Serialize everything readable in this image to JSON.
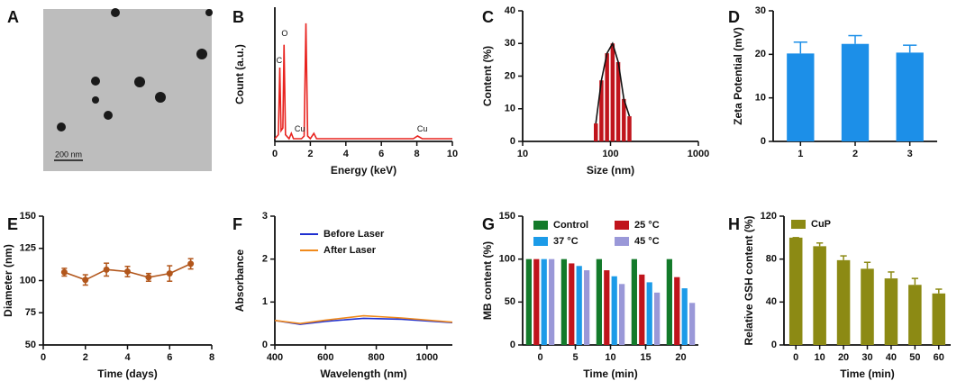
{
  "chart_data": [
    {
      "type": "image",
      "label": "A",
      "scale_bar": "200 nm"
    },
    {
      "type": "line",
      "label": "B",
      "xlabel": "Energy (keV)",
      "ylabel": "Count (a.u.)",
      "color": "#e8231f",
      "xlim": [
        0,
        10
      ],
      "xticks": [
        0,
        2,
        4,
        6,
        8,
        10
      ],
      "ylim": [
        0,
        100
      ],
      "x": [
        0,
        0.2,
        0.28,
        0.35,
        0.45,
        0.52,
        0.6,
        0.8,
        0.93,
        1.05,
        1.5,
        1.65,
        1.75,
        1.85,
        2.0,
        2.2,
        2.35,
        3,
        7.8,
        8.04,
        8.3,
        10
      ],
      "values": [
        2,
        5,
        55,
        8,
        10,
        72,
        5,
        2,
        6,
        2,
        2,
        4,
        88,
        4,
        2,
        6,
        2,
        2,
        2,
        4,
        2,
        2
      ],
      "annotations": [
        "C",
        "O",
        "Cu",
        "Cu"
      ]
    },
    {
      "type": "histogram",
      "label": "C",
      "xlabel": "Size (nm)",
      "ylabel": "Content (%)",
      "color": "#c0141c",
      "xscale": "log",
      "xlim": [
        10,
        1000
      ],
      "xticks": [
        10,
        100,
        1000
      ],
      "ylim": [
        0,
        40
      ],
      "yticks": [
        0,
        10,
        20,
        30,
        40
      ],
      "x": [
        68.1,
        78.8,
        91.3,
        105.7,
        122.4,
        141.8,
        164.2
      ],
      "values": [
        5.5,
        18.7,
        27,
        30,
        24.3,
        13,
        7.7
      ]
    },
    {
      "type": "bar",
      "label": "D",
      "ylabel": "Zeta Potential (mV)",
      "color": "#1c8fe8",
      "categories": [
        "1",
        "2",
        "3"
      ],
      "values": [
        20.2,
        22.4,
        20.4
      ],
      "errors": [
        2.6,
        1.9,
        1.7
      ],
      "ylim": [
        0,
        30
      ],
      "yticks": [
        0,
        10,
        20,
        30
      ]
    },
    {
      "type": "errline",
      "label": "E",
      "xlabel": "Time (days)",
      "ylabel": "Diameter (nm)",
      "color": "#b2561b",
      "x": [
        1,
        2,
        3,
        4,
        5,
        6,
        7
      ],
      "values": [
        106.5,
        100.5,
        108.5,
        107,
        102.5,
        105.5,
        113
      ],
      "errors": [
        3,
        4,
        5,
        4,
        3,
        6,
        4
      ],
      "xlim": [
        0,
        8
      ],
      "xticks": [
        0,
        2,
        4,
        6,
        8
      ],
      "ylim": [
        50,
        150
      ],
      "yticks": [
        50,
        75,
        100,
        125,
        150
      ]
    },
    {
      "type": "multiline",
      "label": "F",
      "xlabel": "Wavelength (nm)",
      "ylabel": "Absorbance",
      "x": [
        400,
        500,
        600,
        750,
        900,
        1100
      ],
      "xlim": [
        400,
        1100
      ],
      "xticks": [
        400,
        600,
        800,
        1000
      ],
      "ylim": [
        0,
        3
      ],
      "yticks": [
        0,
        1,
        2,
        3
      ],
      "series": [
        {
          "name": "Before Laser",
          "color": "#1f2fd0",
          "values": [
            0.57,
            0.48,
            0.55,
            0.62,
            0.6,
            0.52
          ]
        },
        {
          "name": "After Laser",
          "color": "#f08a1c",
          "values": [
            0.57,
            0.5,
            0.58,
            0.68,
            0.63,
            0.53
          ]
        }
      ]
    },
    {
      "type": "groupbar",
      "label": "G",
      "xlabel": "Time (min)",
      "ylabel": "MB content (%)",
      "categories": [
        "0",
        "5",
        "10",
        "15",
        "20"
      ],
      "ylim": [
        0,
        150
      ],
      "yticks": [
        0,
        50,
        100,
        150
      ],
      "series": [
        {
          "name": "Control",
          "color": "#137a2a",
          "values": [
            100,
            100,
            100,
            100,
            100
          ]
        },
        {
          "name": "25 °C",
          "color": "#c0141c",
          "values": [
            100,
            95,
            87,
            82,
            79
          ]
        },
        {
          "name": "37 °C",
          "color": "#1c9be8",
          "values": [
            100,
            92,
            80,
            73,
            66
          ]
        },
        {
          "name": "45 °C",
          "color": "#9a98d8",
          "values": [
            100,
            87,
            71,
            61,
            49
          ]
        }
      ]
    },
    {
      "type": "bar",
      "label": "H",
      "xlabel": "Time (min)",
      "ylabel": "Relative GSH content (%)",
      "color": "#8c8a14",
      "legend": "CuP",
      "categories": [
        "0",
        "10",
        "20",
        "30",
        "40",
        "50",
        "60"
      ],
      "values": [
        100,
        92,
        79,
        71,
        62,
        56,
        48
      ],
      "errors": [
        0,
        3,
        4,
        6,
        6,
        6,
        4
      ],
      "ylim": [
        0,
        120
      ],
      "yticks": [
        0,
        40,
        80,
        120
      ]
    }
  ]
}
